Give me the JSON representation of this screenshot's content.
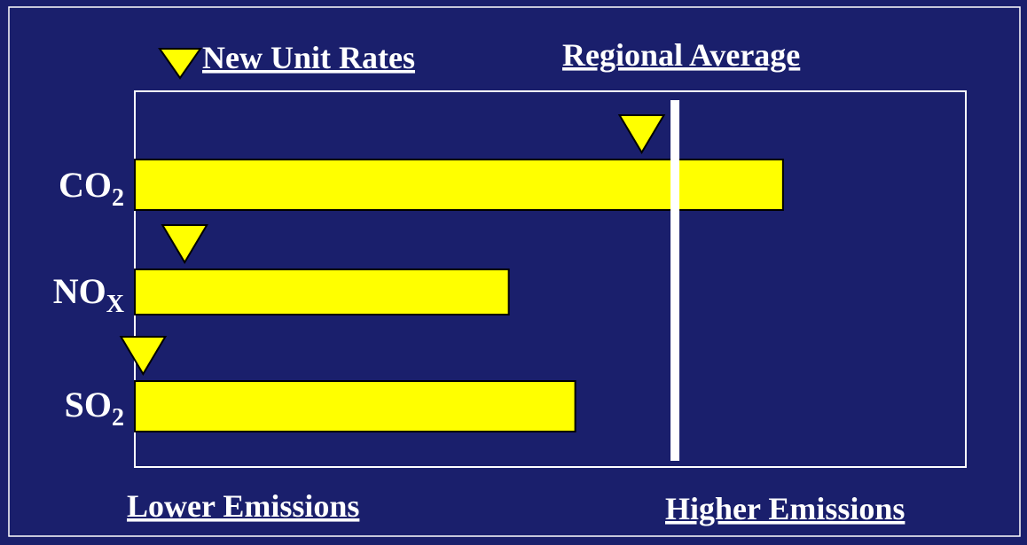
{
  "chart_data": {
    "type": "bar",
    "orientation": "horizontal",
    "legend": "New Unit Rates",
    "reference_label": "Regional Average",
    "x_low_label": "Lower Emissions",
    "x_high_label": "Higher Emissions",
    "categories": [
      [
        "CO",
        "2"
      ],
      [
        "NO",
        "X"
      ],
      [
        "SO",
        "2"
      ]
    ],
    "values": [
      78,
      45,
      53
    ],
    "markers": [
      61,
      6,
      1
    ],
    "reference": 65,
    "xlim": [
      0,
      100
    ],
    "color": "#ffff00",
    "marker_color": "#ffff00",
    "reference_color": "#ffffff"
  }
}
